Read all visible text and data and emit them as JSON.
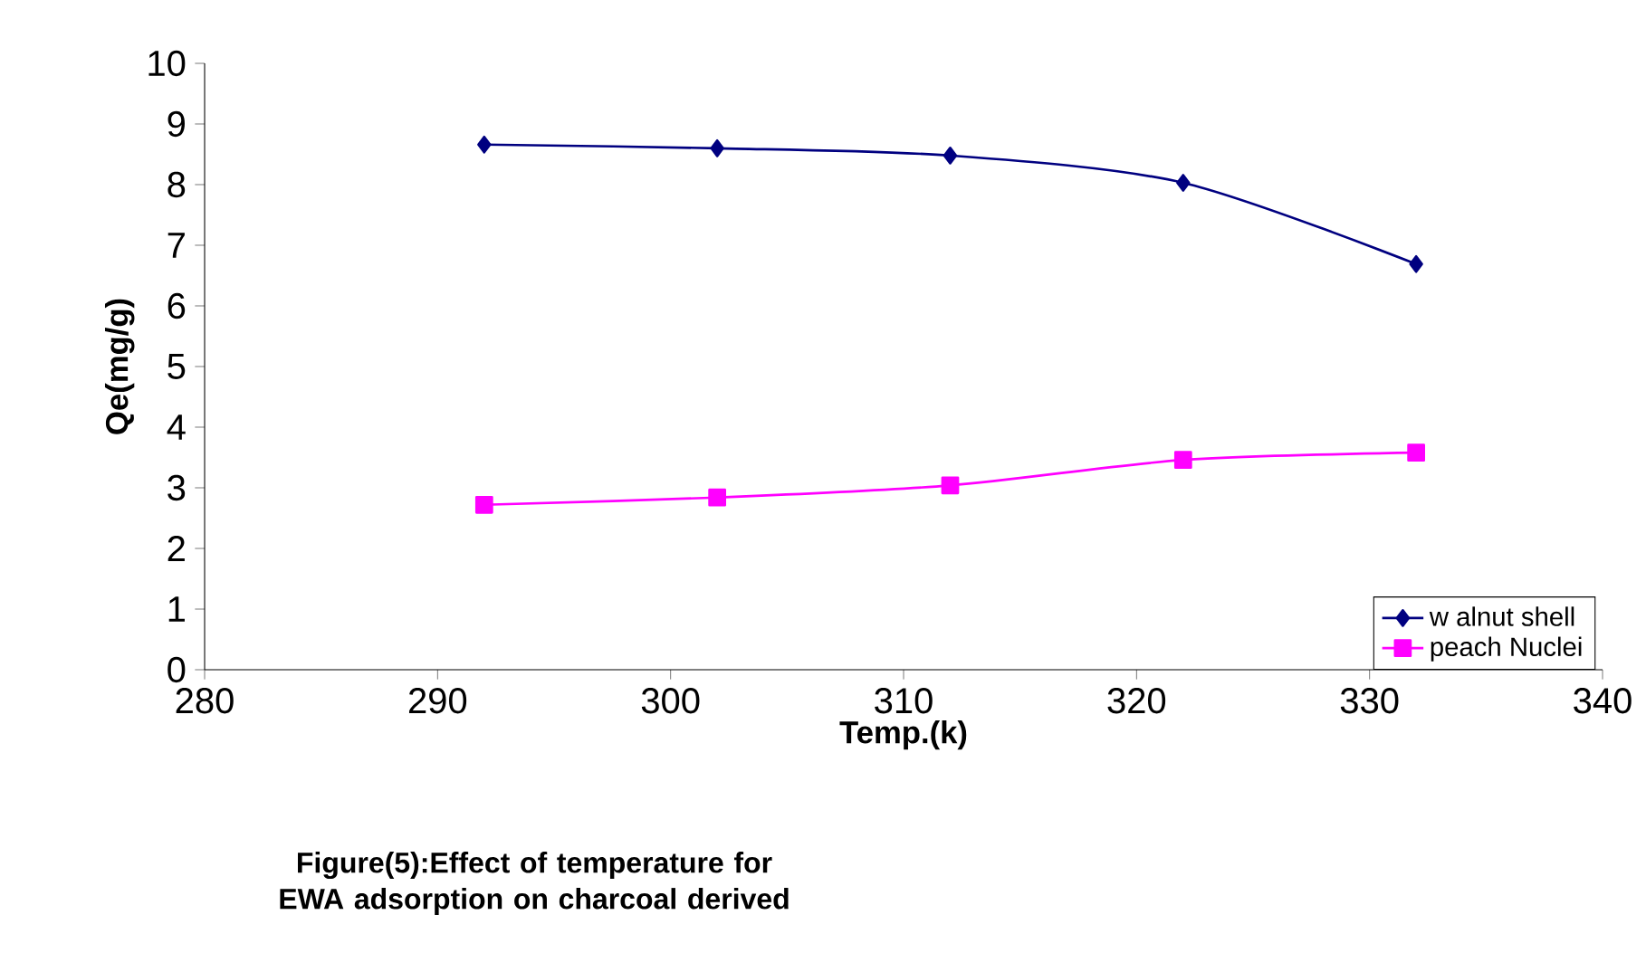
{
  "chart_data": {
    "type": "line",
    "xlabel": "Temp.(k)",
    "ylabel": "Qe(mg/g)",
    "annotations": [
      "Figure(5):Effect of temperature for EWA adsorption on charcoal derived"
    ],
    "x": [
      292,
      302,
      312,
      322,
      332
    ],
    "series": [
      {
        "name": "w alnut shell",
        "color": "#000080",
        "marker": "diamond",
        "values": [
          8.66,
          8.6,
          8.48,
          8.03,
          6.69
        ]
      },
      {
        "name": "peach Nuclei",
        "color": "#ff00ff",
        "marker": "square",
        "values": [
          2.72,
          2.84,
          3.04,
          3.46,
          3.58
        ]
      }
    ],
    "xlim": [
      280,
      340
    ],
    "xticks": [
      280,
      290,
      300,
      310,
      320,
      330,
      340
    ],
    "ylim": [
      0,
      10
    ],
    "yticks": [
      0,
      1,
      2,
      3,
      4,
      5,
      6,
      7,
      8,
      9,
      10
    ],
    "grid": false,
    "legend": "bottom right",
    "line_style": "solid"
  }
}
